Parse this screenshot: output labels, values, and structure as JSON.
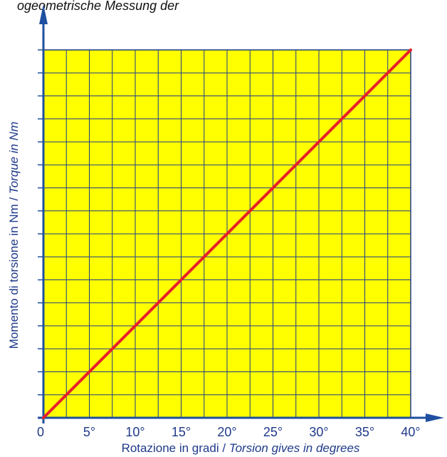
{
  "header_fragment": "ogeometrische Messung der",
  "colors": {
    "plot_bg": "#ffff00",
    "grid": "#1f3a8a",
    "axis": "#1f4fa0",
    "line": "#e8202a",
    "text": "#1f3a8a"
  },
  "chart_data": {
    "type": "line",
    "x_tick_labels": [
      "0",
      "5°",
      "10°",
      "15°",
      "20°",
      "25°",
      "30°",
      "35°",
      "40°"
    ],
    "xlabel": {
      "main": "Rotazione in gradi / ",
      "italic": "Torsion gives in degrees"
    },
    "ylabel": {
      "main": "Momento di torsione in Nm / ",
      "italic": "Torque in Nm"
    },
    "xlim": [
      0,
      40
    ],
    "ylim": [
      0,
      16
    ],
    "x_grid_step": 2.5,
    "y_grid_step": 1,
    "grid": true,
    "y_tick_labels_visible": false,
    "series": [
      {
        "x": [
          0,
          40
        ],
        "y": [
          0,
          16
        ]
      }
    ]
  }
}
